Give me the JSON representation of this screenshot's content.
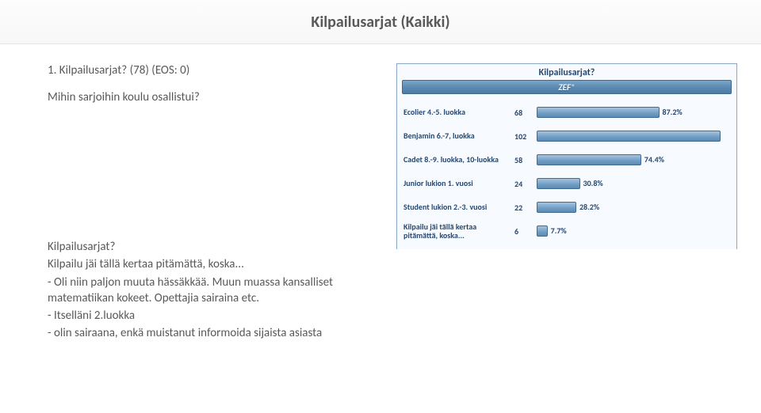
{
  "header": {
    "title": "Kilpailusarjat (Kaikki)"
  },
  "question": {
    "title": "1. Kilpailusarjat? (78) (EOS: 0)",
    "subtitle": "Mihin sarjoihin koulu osallistui?"
  },
  "notes": {
    "heading": "Kilpailusarjat?",
    "line1": "Kilpailu jäi tällä kertaa pitämättä, koska...",
    "bullet1": "- Oli niin paljon muuta hässäkkää. Muun muassa kansalliset matematiikan kokeet. Opettajia sairaina etc.",
    "bullet2": "- Itselläni 2.luokka",
    "bullet3": "- olin sairaana, enkä muistanut informoida sijaista asiasta"
  },
  "chart": {
    "type": "bar",
    "title": "Kilpailusarjat?",
    "brand": "ZEF",
    "background_color": "#f7fbff",
    "border_color": "#8aa7c9",
    "bar_gradient_top": "#a6c4df",
    "bar_gradient_bottom": "#5c8ab2",
    "bar_border_color": "#3f6a92",
    "text_color": "#27476f",
    "label_fontsize": 10,
    "title_fontsize": 12,
    "max_pct": 100,
    "items": [
      {
        "label": "Ecolier 4.-5. luokka",
        "count": 68,
        "pct": 87.2
      },
      {
        "label": "Benjamin 6.-7, luokka",
        "count": 102,
        "pct": null
      },
      {
        "label": "Cadet 8.-9. luokka, 10-luokka",
        "count": 58,
        "pct": 74.4
      },
      {
        "label": "Junior lukion 1. vuosi",
        "count": 24,
        "pct": 30.8
      },
      {
        "label": "Student lukion 2.-3. vuosi",
        "count": 22,
        "pct": 28.2
      },
      {
        "label": "Kilpailu jäi tällä kertaa pitämättä, koska...",
        "count": 6,
        "pct": 7.7
      }
    ]
  }
}
